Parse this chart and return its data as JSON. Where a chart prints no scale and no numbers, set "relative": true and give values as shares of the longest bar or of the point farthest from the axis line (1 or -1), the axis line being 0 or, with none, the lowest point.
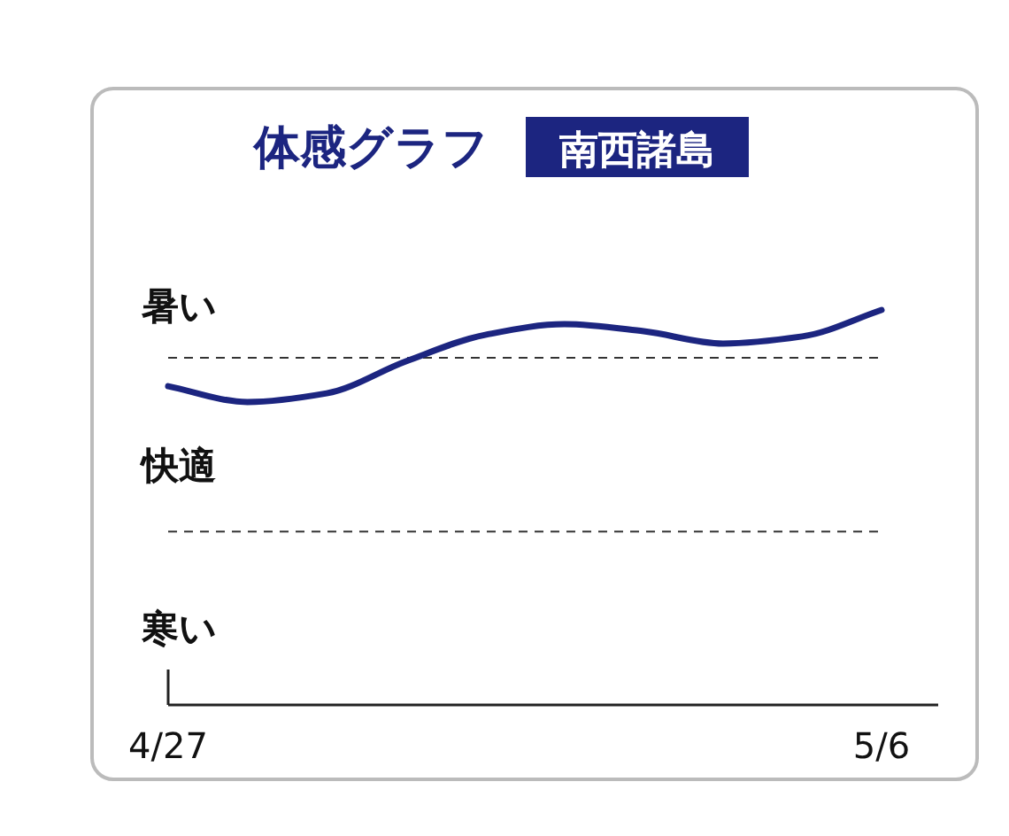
{
  "chart_data": {
    "type": "line",
    "title": "体感グラフ",
    "subtitle": "南西諸島",
    "categories": [
      "4/27",
      null,
      null,
      null,
      null,
      null,
      null,
      null,
      null,
      "5/6"
    ],
    "relative": true,
    "series": [
      {
        "color": "#1c2580",
        "values": [
          0.807,
          0.767,
          0.789,
          0.87,
          0.937,
          0.964,
          0.946,
          0.915,
          0.933,
          1.0
        ]
      }
    ],
    "ref_lines": [
      {
        "axis": "y",
        "value": 0.879,
        "color": "#333333",
        "line_style": "dashed"
      },
      {
        "axis": "y",
        "value": 0.439,
        "color": "#333333",
        "line_style": "dashed"
      }
    ],
    "annotations": [
      "暑い",
      "快適",
      "寒い"
    ],
    "marker": "none",
    "line_style": "solid"
  }
}
